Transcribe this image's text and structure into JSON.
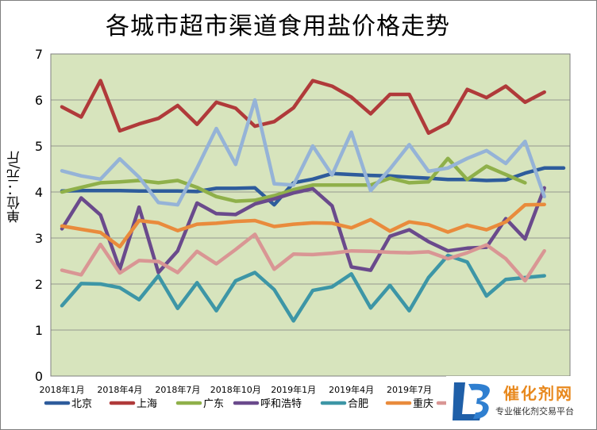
{
  "chart_data": {
    "type": "line",
    "title": "各城市超市渠道食用盐价格走势",
    "ylabel": "单位：元/斤",
    "ylim": [
      0,
      7
    ],
    "yticks": [
      0,
      1,
      2,
      3,
      4,
      5,
      6,
      7
    ],
    "grid": true,
    "legend_position": "bottom",
    "plot_background": "#d7e4bd",
    "x_tick_labels": [
      "2018年1月",
      "2018年4月",
      "2018年7月",
      "2018年10月",
      "2019年1月",
      "2019年4月",
      "2019年7月"
    ],
    "x_tick_indices": [
      0,
      3,
      6,
      9,
      12,
      15,
      18
    ],
    "num_points": 27,
    "series": [
      {
        "name": "北京",
        "color": "#2e5c9c",
        "values": [
          4.02,
          4.03,
          4.03,
          4.03,
          4.02,
          4.02,
          4.02,
          4.01,
          4.08,
          4.08,
          4.09,
          3.72,
          4.2,
          4.28,
          4.4,
          4.38,
          4.36,
          4.35,
          4.32,
          4.3,
          4.27,
          4.27,
          4.25,
          4.26,
          4.41,
          4.52,
          4.52
        ]
      },
      {
        "name": "上海",
        "color": "#b03a3a",
        "values": [
          5.85,
          5.63,
          6.42,
          5.33,
          5.48,
          5.6,
          5.88,
          5.47,
          5.95,
          5.82,
          5.43,
          5.53,
          5.83,
          6.42,
          6.3,
          6.06,
          5.7,
          6.12,
          6.12,
          5.28,
          5.5,
          6.23,
          6.05,
          6.3,
          5.95,
          6.17,
          null
        ]
      },
      {
        "name": "广东",
        "color": "#8fb04a",
        "values": [
          4.0,
          4.1,
          4.2,
          4.22,
          4.25,
          4.2,
          4.25,
          4.1,
          3.9,
          3.8,
          3.82,
          3.92,
          4.05,
          4.15,
          4.15,
          4.15,
          4.15,
          4.3,
          4.2,
          4.22,
          4.73,
          4.27,
          4.56,
          4.38,
          4.2,
          null,
          null
        ]
      },
      {
        "name": "呼和浩特",
        "color": "#6a4a8c",
        "values": [
          3.2,
          3.87,
          3.5,
          2.32,
          3.67,
          2.25,
          2.72,
          3.76,
          3.53,
          3.51,
          3.74,
          3.85,
          3.98,
          4.07,
          3.7,
          2.37,
          2.3,
          3.04,
          3.18,
          2.92,
          2.72,
          2.78,
          2.8,
          3.42,
          2.98,
          4.09,
          null
        ]
      },
      {
        "name": "合肥",
        "color": "#3d96a6",
        "values": [
          1.53,
          2.01,
          2.0,
          1.92,
          1.66,
          2.18,
          1.47,
          2.03,
          1.42,
          2.07,
          2.25,
          1.88,
          1.2,
          1.86,
          1.94,
          2.22,
          1.48,
          1.97,
          1.42,
          2.14,
          2.62,
          2.48,
          1.74,
          2.1,
          2.14,
          2.18,
          null
        ]
      },
      {
        "name": "重庆",
        "color": "#e98b3c",
        "values": [
          3.26,
          3.19,
          3.12,
          2.81,
          3.38,
          3.33,
          3.16,
          3.3,
          3.32,
          3.36,
          3.38,
          3.25,
          3.3,
          3.33,
          3.32,
          3.22,
          3.4,
          3.15,
          3.35,
          3.29,
          3.13,
          3.28,
          3.18,
          3.35,
          3.72,
          3.73,
          null
        ]
      },
      {
        "name": "",
        "color": "#d99694",
        "values": [
          2.3,
          2.2,
          2.86,
          2.24,
          2.51,
          2.49,
          2.25,
          2.71,
          2.44,
          2.75,
          3.08,
          2.32,
          2.65,
          2.64,
          2.67,
          2.72,
          2.71,
          2.69,
          2.68,
          2.7,
          2.55,
          2.68,
          2.85,
          2.55,
          2.07,
          2.72,
          null
        ]
      },
      {
        "name": "",
        "color": "#95b3d7",
        "values": [
          4.46,
          4.35,
          4.28,
          4.72,
          4.32,
          3.77,
          3.72,
          4.52,
          5.38,
          4.6,
          6.0,
          4.18,
          4.15,
          5.0,
          4.37,
          5.3,
          4.03,
          4.5,
          5.03,
          4.45,
          4.52,
          4.73,
          4.9,
          4.62,
          5.1,
          3.9,
          null
        ]
      }
    ]
  },
  "logo": {
    "main": "催化剂网",
    "sub": "专业催化剂交易平台"
  }
}
